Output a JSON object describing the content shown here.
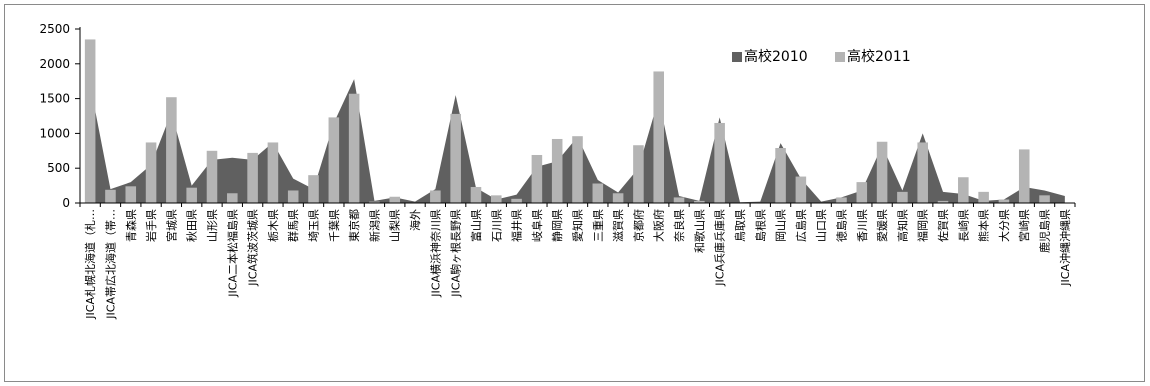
{
  "chart_data": {
    "type": "area",
    "title": "",
    "xlabel": "",
    "ylabel": "",
    "ylim": [
      0,
      2500
    ],
    "yticks": [
      0,
      500,
      1000,
      1500,
      2000,
      2500
    ],
    "grid": false,
    "legend_position": "top-right",
    "categories": [
      "JICA札幌北海道（札…",
      "JICA帯広北海道（帯…",
      "青森県",
      "岩手県",
      "宮城県",
      "秋田県",
      "山形県",
      "JICA二本松福島県",
      "JICA筑波茨城県",
      "栃木県",
      "群馬県",
      "埼玉県",
      "千葉県",
      "東京都",
      "新潟県",
      "山梨県",
      "海外",
      "JICA横浜神奈川県",
      "JICA駒ヶ根長野県",
      "富山県",
      "石川県",
      "福井県",
      "岐阜県",
      "静岡県",
      "愛知県",
      "三重県",
      "滋賀県",
      "京都府",
      "大阪府",
      "奈良県",
      "和歌山県",
      "JICA兵庫兵庫県",
      "鳥取県",
      "島根県",
      "岡山県",
      "広島県",
      "山口県",
      "徳島県",
      "香川県",
      "愛媛県",
      "高知県",
      "福岡県",
      "佐賀県",
      "長崎県",
      "熊本県",
      "大分県",
      "宮崎県",
      "鹿児島県",
      "JICA沖縄沖縄県"
    ],
    "series": [
      {
        "name": "高校2010",
        "color": "#606060",
        "style": "area",
        "values": [
          1700,
          200,
          300,
          550,
          1300,
          250,
          620,
          650,
          620,
          870,
          350,
          200,
          1150,
          1780,
          30,
          80,
          20,
          200,
          1550,
          220,
          50,
          120,
          520,
          600,
          950,
          330,
          150,
          500,
          1500,
          100,
          30,
          1230,
          10,
          20,
          860,
          350,
          20,
          80,
          180,
          820,
          180,
          1000,
          160,
          130,
          30,
          50,
          230,
          180,
          100
        ]
      },
      {
        "name": "高校2011",
        "color": "#b4b4b4",
        "style": "bar",
        "values": [
          2350,
          190,
          240,
          870,
          1520,
          220,
          750,
          140,
          720,
          870,
          180,
          400,
          1230,
          1570,
          20,
          90,
          0,
          180,
          1280,
          230,
          110,
          60,
          690,
          920,
          960,
          280,
          140,
          830,
          1890,
          80,
          30,
          1150,
          0,
          0,
          790,
          380,
          0,
          80,
          300,
          880,
          160,
          870,
          30,
          370,
          160,
          50,
          770,
          110,
          0
        ]
      }
    ]
  }
}
